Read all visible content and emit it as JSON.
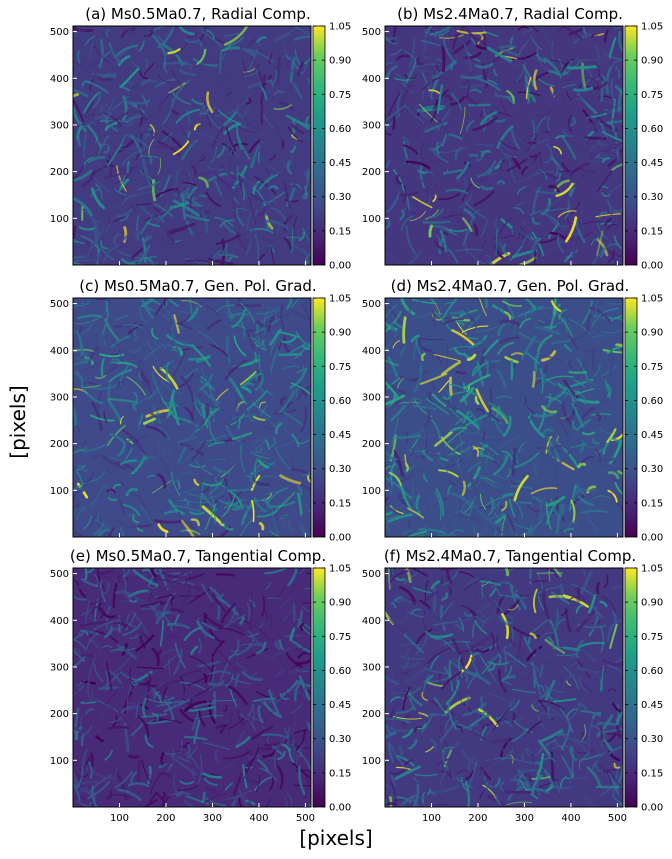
{
  "figure": {
    "xlabel": "[pixels]",
    "ylabel": "[pixels]"
  },
  "chart_data": [
    {
      "type": "heatmap",
      "title": "(a) Ms0.5Ma0.7, Radial Comp.",
      "sonic_mach": 0.5,
      "alfven_mach": 0.7,
      "component": "Radial Comp.",
      "xlim": [
        0,
        512
      ],
      "ylim": [
        0,
        512
      ],
      "xticks": [
        100,
        200,
        300,
        400,
        500
      ],
      "yticks": [
        100,
        200,
        300,
        400,
        500
      ],
      "colorbar": {
        "colormap": "viridis",
        "range": [
          0,
          1.05
        ],
        "ticks": [
          "0.00",
          "0.15",
          "0.30",
          "0.45",
          "0.60",
          "0.75",
          "0.90",
          "1.05"
        ]
      },
      "mean_level": 0.28,
      "bright_fraction": 0.04
    },
    {
      "type": "heatmap",
      "title": "(b) Ms2.4Ma0.7, Radial Comp.",
      "sonic_mach": 2.4,
      "alfven_mach": 0.7,
      "component": "Radial Comp.",
      "xlim": [
        0,
        512
      ],
      "ylim": [
        0,
        512
      ],
      "xticks": [
        100,
        200,
        300,
        400,
        500
      ],
      "yticks": [
        100,
        200,
        300,
        400,
        500
      ],
      "colorbar": {
        "colormap": "viridis",
        "range": [
          0,
          1.05
        ],
        "ticks": [
          "0.00",
          "0.15",
          "0.30",
          "0.45",
          "0.60",
          "0.75",
          "0.90",
          "1.05"
        ]
      },
      "mean_level": 0.26,
      "bright_fraction": 0.07
    },
    {
      "type": "heatmap",
      "title": "(c) Ms0.5Ma0.7, Gen. Pol. Grad.",
      "sonic_mach": 0.5,
      "alfven_mach": 0.7,
      "component": "Gen. Pol. Grad.",
      "xlim": [
        0,
        512
      ],
      "ylim": [
        0,
        512
      ],
      "xticks": [
        100,
        200,
        300,
        400,
        500
      ],
      "yticks": [
        100,
        200,
        300,
        400,
        500
      ],
      "colorbar": {
        "colormap": "viridis",
        "range": [
          0,
          1.05
        ],
        "ticks": [
          "0.00",
          "0.15",
          "0.30",
          "0.45",
          "0.60",
          "0.75",
          "0.90",
          "1.05"
        ]
      },
      "mean_level": 0.36,
      "bright_fraction": 0.05
    },
    {
      "type": "heatmap",
      "title": "(d) Ms2.4Ma0.7, Gen. Pol. Grad.",
      "sonic_mach": 2.4,
      "alfven_mach": 0.7,
      "component": "Gen. Pol. Grad.",
      "xlim": [
        0,
        512
      ],
      "ylim": [
        0,
        512
      ],
      "xticks": [
        100,
        200,
        300,
        400,
        500
      ],
      "yticks": [
        100,
        200,
        300,
        400,
        500
      ],
      "colorbar": {
        "colormap": "viridis",
        "range": [
          0,
          1.05
        ],
        "ticks": [
          "0.00",
          "0.15",
          "0.30",
          "0.45",
          "0.60",
          "0.75",
          "0.90",
          "1.05"
        ]
      },
      "mean_level": 0.38,
      "bright_fraction": 0.12
    },
    {
      "type": "heatmap",
      "title": "(e) Ms0.5Ma0.7, Tangential Comp.",
      "sonic_mach": 0.5,
      "alfven_mach": 0.7,
      "component": "Tangential Comp.",
      "xlim": [
        0,
        512
      ],
      "ylim": [
        0,
        512
      ],
      "xticks": [
        100,
        200,
        300,
        400,
        500
      ],
      "yticks": [
        100,
        200,
        300,
        400,
        500
      ],
      "colorbar": {
        "colormap": "viridis",
        "range": [
          0,
          1.05
        ],
        "ticks": [
          "0.00",
          "0.15",
          "0.30",
          "0.45",
          "0.60",
          "0.75",
          "0.90",
          "1.05"
        ]
      },
      "mean_level": 0.2,
      "bright_fraction": 0.0
    },
    {
      "type": "heatmap",
      "title": "(f) Ms2.4Ma0.7, Tangential Comp.",
      "sonic_mach": 2.4,
      "alfven_mach": 0.7,
      "component": "Tangential Comp.",
      "xlim": [
        0,
        512
      ],
      "ylim": [
        0,
        512
      ],
      "xticks": [
        100,
        200,
        300,
        400,
        500
      ],
      "yticks": [
        100,
        200,
        300,
        400,
        500
      ],
      "colorbar": {
        "colormap": "viridis",
        "range": [
          0,
          1.05
        ],
        "ticks": [
          "0.00",
          "0.15",
          "0.30",
          "0.45",
          "0.60",
          "0.75",
          "0.90",
          "1.05"
        ]
      },
      "mean_level": 0.27,
      "bright_fraction": 0.08
    }
  ]
}
